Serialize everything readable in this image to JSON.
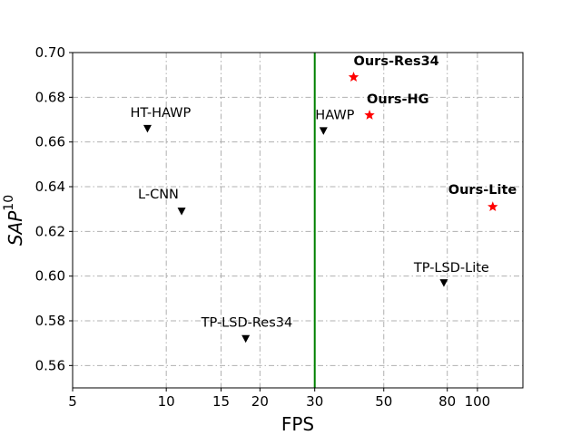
{
  "chart_data": {
    "type": "scatter",
    "title": "",
    "xlabel": "FPS",
    "ylabel_base": "SAP",
    "ylabel_sup": "10",
    "xscale": "log",
    "xlim": [
      5,
      140
    ],
    "ylim": [
      0.55,
      0.7
    ],
    "xticks": [
      5,
      10,
      15,
      20,
      30,
      50,
      80,
      100
    ],
    "yticks": [
      0.56,
      0.58,
      0.6,
      0.62,
      0.64,
      0.66,
      0.68,
      0.7
    ],
    "ytick_labels": [
      "0.56",
      "0.58",
      "0.60",
      "0.62",
      "0.64",
      "0.66",
      "0.68",
      "0.70"
    ],
    "grid": true,
    "reference_line": {
      "x": 30,
      "color": "#008000"
    },
    "series": [
      {
        "marker": "triangle-down",
        "color": "#000000",
        "points": [
          {
            "label": "HT-HAWP",
            "fps": 8.7,
            "sap": 0.666,
            "bold": false
          },
          {
            "label": "L-CNN",
            "fps": 11.2,
            "sap": 0.629,
            "bold": false
          },
          {
            "label": "HAWP",
            "fps": 32.0,
            "sap": 0.665,
            "bold": false
          },
          {
            "label": "TP-LSD-Res34",
            "fps": 18.0,
            "sap": 0.572,
            "bold": false
          },
          {
            "label": "TP-LSD-Lite",
            "fps": 78.0,
            "sap": 0.597,
            "bold": false
          }
        ]
      },
      {
        "marker": "star",
        "color": "#ff0000",
        "points": [
          {
            "label": "Ours-Res34",
            "fps": 40.0,
            "sap": 0.689,
            "bold": true
          },
          {
            "label": "Ours-HG",
            "fps": 45.0,
            "sap": 0.672,
            "bold": true
          },
          {
            "label": "Ours-Lite",
            "fps": 112.0,
            "sap": 0.631,
            "bold": true
          }
        ]
      }
    ]
  }
}
